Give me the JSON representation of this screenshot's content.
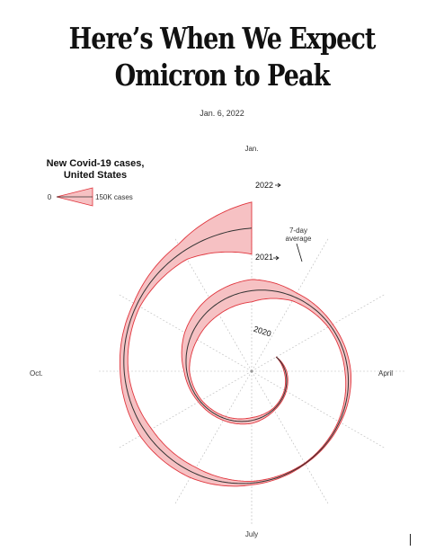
{
  "title": "Here’s When We Expect Omicron to Peak",
  "date": "Jan. 6, 2022",
  "legend": {
    "title_line1": "New Covid-19 cases,",
    "title_line2": "United States",
    "min_label": "0",
    "max_label": "150K cases"
  },
  "colors": {
    "band_fill": "#f6c1c3",
    "band_stroke": "#e0353d",
    "average_line": "#333333",
    "grid": "#bbbbbb"
  },
  "chart_data": {
    "type": "area",
    "layout": "spiral",
    "month_labels": [
      "Jan.",
      "April",
      "July",
      "Oct."
    ],
    "year_labels": [
      "2020",
      "2021",
      "2022"
    ],
    "annotation": "7-day average",
    "series": [
      {
        "name": "7-day average",
        "x": [
          "2020-03",
          "2020-04",
          "2020-05",
          "2020-06",
          "2020-07",
          "2020-08",
          "2020-09",
          "2020-10",
          "2020-11",
          "2020-12",
          "2021-01",
          "2021-02",
          "2021-03",
          "2021-04",
          "2021-05",
          "2021-06",
          "2021-07",
          "2021-08",
          "2021-09",
          "2021-10",
          "2021-11",
          "2021-12",
          "2022-01"
        ],
        "values": [
          2000,
          30000,
          25000,
          25000,
          65000,
          50000,
          40000,
          60000,
          160000,
          220000,
          250000,
          100000,
          60000,
          65000,
          30000,
          12000,
          40000,
          130000,
          150000,
          90000,
          80000,
          190000,
          580000
        ]
      }
    ]
  }
}
